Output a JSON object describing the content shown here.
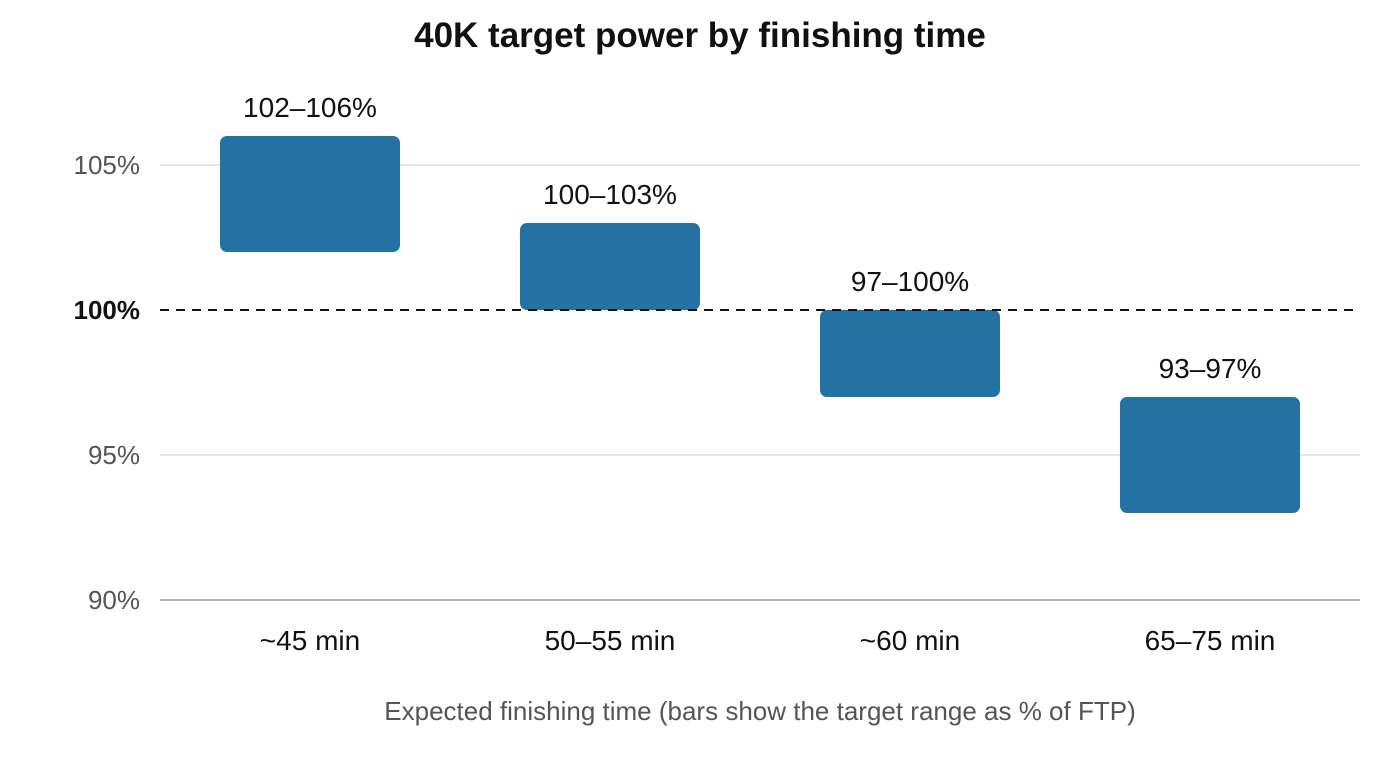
{
  "chart_data": {
    "type": "bar",
    "title": "40K target power by finishing time",
    "xlabel": "Expected finishing time (bars show the target range as % of FTP)",
    "ylabel": "",
    "ylim": [
      90,
      108
    ],
    "yticks": [
      90,
      95,
      100,
      105
    ],
    "ytick_labels": [
      "90%",
      "95%",
      "100%",
      "105%"
    ],
    "reference_line": {
      "value": 100,
      "style": "dashed"
    },
    "grid": true,
    "categories": [
      "~45 min",
      "50–55 min",
      "~60 min",
      "65–75 min"
    ],
    "ranges": [
      {
        "low": 102,
        "high": 106,
        "label": "102–106%"
      },
      {
        "low": 100,
        "high": 103,
        "label": "100–103%"
      },
      {
        "low": 97,
        "high": 100,
        "label": "97–100%"
      },
      {
        "low": 93,
        "high": 97,
        "label": "93–97%"
      }
    ],
    "colors": {
      "bar": "#2471a3",
      "grid": "#dddddd",
      "axis": "#999999",
      "reference": "#111111"
    }
  }
}
